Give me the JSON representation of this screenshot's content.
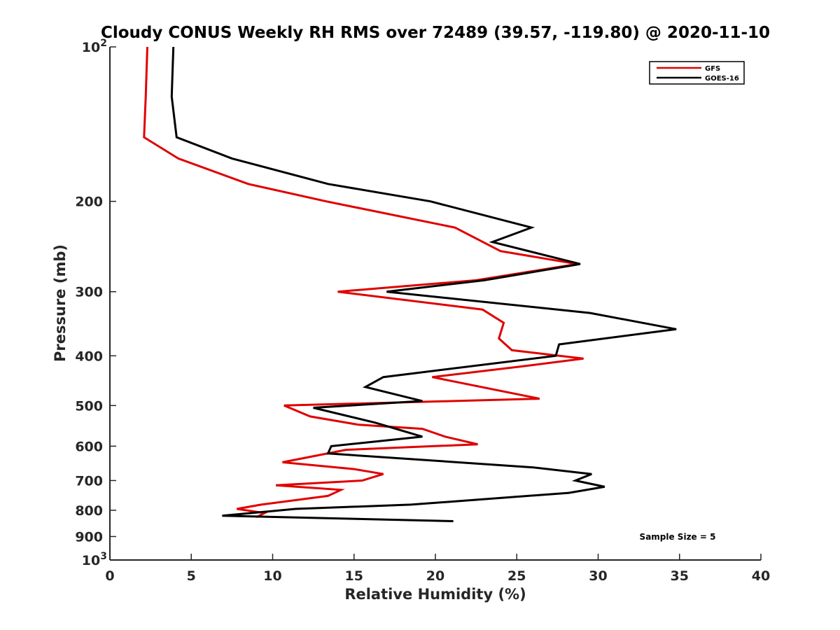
{
  "chart_data": {
    "type": "line",
    "title": "Cloudy CONUS Weekly RH RMS over 72489 (39.57, -119.80) @ 2020-11-10",
    "xlabel": "Relative Humidity (%)",
    "ylabel": "Pressure (mb)",
    "xlim": [
      0,
      40
    ],
    "ylim": [
      100,
      1000
    ],
    "y_scale": "log",
    "y_reversed": true,
    "grid": false,
    "legend_position": "top-right",
    "x_ticks": [
      "0",
      "5",
      "10",
      "15",
      "20",
      "25",
      "30",
      "35",
      "40"
    ],
    "y_ticks": [
      {
        "value": 100,
        "base": "10",
        "exp": "2"
      },
      {
        "value": 200,
        "label": "200"
      },
      {
        "value": 300,
        "label": "300"
      },
      {
        "value": 400,
        "label": "400"
      },
      {
        "value": 500,
        "label": "500"
      },
      {
        "value": 600,
        "label": "600"
      },
      {
        "value": 700,
        "label": "700"
      },
      {
        "value": 800,
        "label": "800"
      },
      {
        "value": 900,
        "label": "900"
      },
      {
        "value": 1000,
        "base": "10",
        "exp": "3"
      }
    ],
    "series": [
      {
        "name": "GFS",
        "color": "#e00000",
        "points": [
          [
            2.3,
            100
          ],
          [
            2.2,
            125
          ],
          [
            2.1,
            150
          ],
          [
            4.2,
            165
          ],
          [
            8.5,
            185
          ],
          [
            13.3,
            200
          ],
          [
            21.2,
            225
          ],
          [
            24.0,
            250
          ],
          [
            28.7,
            265
          ],
          [
            22.5,
            285
          ],
          [
            14.0,
            300
          ],
          [
            22.9,
            325
          ],
          [
            24.2,
            345
          ],
          [
            23.9,
            370
          ],
          [
            24.7,
            390
          ],
          [
            29.1,
            405
          ],
          [
            25.2,
            420
          ],
          [
            19.8,
            440
          ],
          [
            26.4,
            485
          ],
          [
            10.7,
            500
          ],
          [
            12.3,
            525
          ],
          [
            15.3,
            545
          ],
          [
            19.2,
            555
          ],
          [
            20.6,
            575
          ],
          [
            22.6,
            595
          ],
          [
            14.5,
            610
          ],
          [
            10.6,
            645
          ],
          [
            15.0,
            665
          ],
          [
            16.8,
            680
          ],
          [
            15.5,
            700
          ],
          [
            10.2,
            715
          ],
          [
            14.2,
            730
          ],
          [
            13.4,
            750
          ],
          [
            9.3,
            780
          ],
          [
            7.8,
            795
          ],
          [
            9.5,
            810
          ],
          [
            9.0,
            825
          ]
        ]
      },
      {
        "name": "GOES-16",
        "color": "#000000",
        "points": [
          [
            3.9,
            100
          ],
          [
            3.8,
            125
          ],
          [
            4.1,
            150
          ],
          [
            7.5,
            165
          ],
          [
            13.4,
            185
          ],
          [
            19.7,
            200
          ],
          [
            25.9,
            225
          ],
          [
            23.5,
            240
          ],
          [
            28.9,
            265
          ],
          [
            23.0,
            285
          ],
          [
            17.0,
            300
          ],
          [
            29.5,
            330
          ],
          [
            34.8,
            355
          ],
          [
            27.6,
            380
          ],
          [
            27.4,
            400
          ],
          [
            16.8,
            440
          ],
          [
            15.7,
            460
          ],
          [
            19.2,
            490
          ],
          [
            12.5,
            505
          ],
          [
            16.3,
            540
          ],
          [
            19.2,
            575
          ],
          [
            13.6,
            600
          ],
          [
            13.4,
            620
          ],
          [
            26.0,
            660
          ],
          [
            29.6,
            680
          ],
          [
            28.6,
            700
          ],
          [
            30.4,
            720
          ],
          [
            28.2,
            740
          ],
          [
            18.5,
            780
          ],
          [
            11.4,
            795
          ],
          [
            6.9,
            820
          ],
          [
            21.1,
            840
          ]
        ]
      }
    ],
    "annotations": [
      "Sample Size = 5"
    ]
  }
}
